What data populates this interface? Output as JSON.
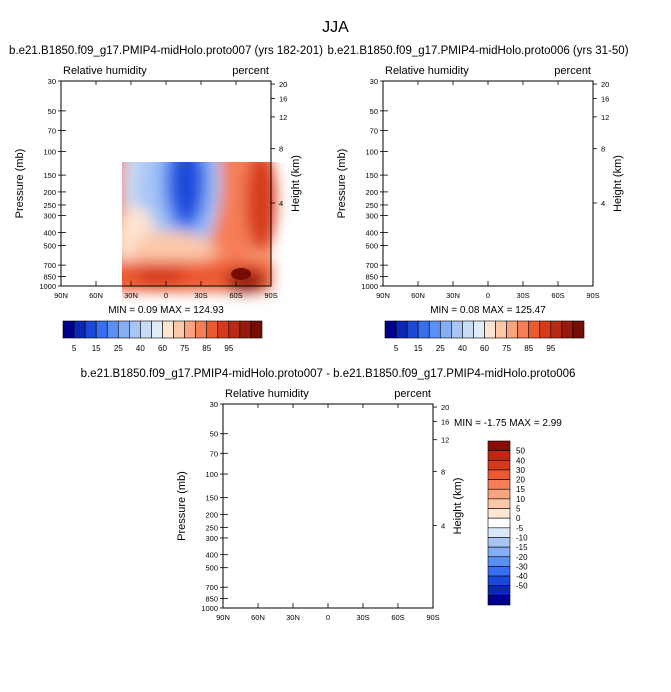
{
  "page": {
    "title": "JJA"
  },
  "colors": {
    "rh_levels": [
      "#00008b",
      "#0a28b5",
      "#1a48d8",
      "#3a6ef0",
      "#5a8ff5",
      "#86aef5",
      "#a8c6f5",
      "#c8dcf5",
      "#e2ecf8",
      "#fde4d2",
      "#fcc8a8",
      "#f9a47f",
      "#f57e56",
      "#ec5a32",
      "#d63a1a",
      "#b82a12",
      "#961b0c",
      "#760c06"
    ],
    "diff_levels": [
      "#00008b",
      "#0a28b5",
      "#1a48d8",
      "#3a6ef0",
      "#5a8ff5",
      "#86aef5",
      "#a8c6f5",
      "#dbe8f7",
      "#ffffff",
      "#fde6d4",
      "#fcc8a8",
      "#f9a47f",
      "#f57e56",
      "#ec5a32",
      "#d63a1a",
      "#b82a12",
      "#8b0c06"
    ]
  },
  "chart_data": [
    {
      "type": "heatmap",
      "title": "b.e21.B1850.f09_g17.PMIP4-midHolo.proto007 (yrs 182-201)",
      "left_label": "Relative humidity",
      "right_label": "percent",
      "ylabel": "Pressure (mb)",
      "ylabel_right": "Height (km)",
      "xticks": [
        "90N",
        "60N",
        "30N",
        "0",
        "30S",
        "60S",
        "90S"
      ],
      "yticks": [
        "30",
        "50",
        "70",
        "100",
        "150",
        "200",
        "250",
        "300",
        "400",
        "500",
        "700",
        "850",
        "1000"
      ],
      "height_ticks": [
        "20",
        "16",
        "12",
        "8",
        "4"
      ],
      "stats": "MIN =  0.09  MAX = 124.93",
      "colorbar_labels": [
        "5",
        "15",
        "25",
        "40",
        "60",
        "75",
        "85",
        "95"
      ]
    },
    {
      "type": "heatmap",
      "title": "b.e21.B1850.f09_g17.PMIP4-midHolo.proto006 (yrs 31-50)",
      "left_label": "Relative humidity",
      "right_label": "percent",
      "ylabel": "Pressure (mb)",
      "ylabel_right": "Height (km)",
      "xticks": [
        "90N",
        "60N",
        "30N",
        "0",
        "30S",
        "60S",
        "90S"
      ],
      "yticks": [
        "30",
        "50",
        "70",
        "100",
        "150",
        "200",
        "250",
        "300",
        "400",
        "500",
        "700",
        "850",
        "1000"
      ],
      "height_ticks": [
        "20",
        "16",
        "12",
        "8",
        "4"
      ],
      "stats": "MIN =  0.08  MAX = 125.47",
      "colorbar_labels": [
        "5",
        "15",
        "25",
        "40",
        "60",
        "75",
        "85",
        "95"
      ]
    },
    {
      "type": "heatmap",
      "title": "b.e21.B1850.f09_g17.PMIP4-midHolo.proto007 - b.e21.B1850.f09_g17.PMIP4-midHolo.proto006",
      "left_label": "Relative humidity",
      "right_label": "percent",
      "ylabel": "Pressure (mb)",
      "ylabel_right": "Height (km)",
      "xticks": [
        "90N",
        "60N",
        "30N",
        "0",
        "30S",
        "60S",
        "90S"
      ],
      "yticks": [
        "30",
        "50",
        "70",
        "100",
        "150",
        "200",
        "250",
        "300",
        "400",
        "500",
        "700",
        "850",
        "1000"
      ],
      "height_ticks": [
        "20",
        "16",
        "12",
        "8",
        "4"
      ],
      "stats": "MIN =  -1.75  MAX =   2.99",
      "colorbar_labels": [
        "50",
        "40",
        "30",
        "20",
        "15",
        "10",
        "5",
        "0",
        "-5",
        "-10",
        "-15",
        "-20",
        "-30",
        "-40",
        "-50"
      ]
    }
  ]
}
